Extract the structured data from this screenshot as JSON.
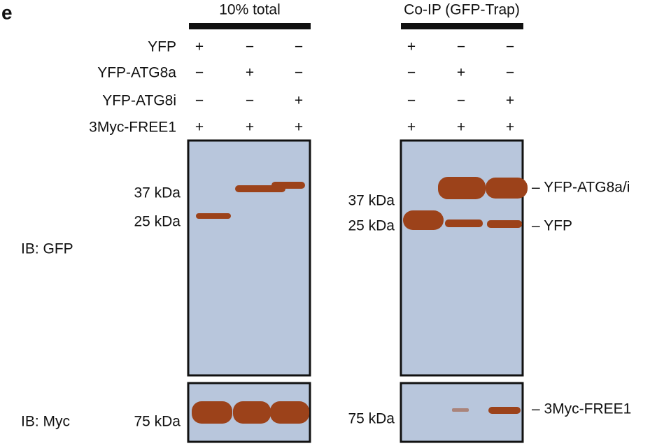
{
  "panel_label": "e",
  "groups": [
    {
      "title": "10% total"
    },
    {
      "title": "Co-IP (GFP-Trap)"
    }
  ],
  "rows": [
    {
      "label": "YFP",
      "signs": [
        "+",
        "−",
        "−",
        "+",
        "−",
        "−"
      ]
    },
    {
      "label": "YFP-ATG8a",
      "signs": [
        "−",
        "+",
        "−",
        "−",
        "+",
        "−"
      ]
    },
    {
      "label": "YFP-ATG8i",
      "signs": [
        "−",
        "−",
        "+",
        "−",
        "−",
        "+"
      ]
    },
    {
      "label": "3Myc-FREE1",
      "signs": [
        "+",
        "+",
        "+",
        "+",
        "+",
        "+"
      ]
    }
  ],
  "ib_labels": [
    "IB: GFP",
    "IB: Myc"
  ],
  "markers": {
    "total": [
      "37 kDa",
      "25 kDa",
      "75 kDa"
    ],
    "coip": [
      "37 kDa",
      "25 kDa",
      "75 kDa"
    ]
  },
  "band_labels": [
    "– YFP-ATG8a/i",
    "– YFP",
    "– 3Myc-FREE1"
  ]
}
